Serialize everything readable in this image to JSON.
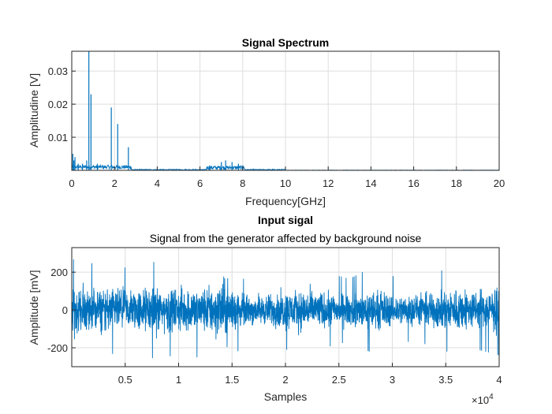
{
  "chart_data": [
    {
      "type": "line",
      "title": "Signal Spectrum",
      "subtitle": "",
      "xlabel": "Frequency[GHz]",
      "ylabel": "Amplitudine [V]",
      "xlim": [
        0,
        20
      ],
      "ylim": [
        0,
        0.036
      ],
      "xticks": [
        0,
        2,
        4,
        6,
        8,
        10,
        12,
        14,
        16,
        18,
        20
      ],
      "xtick_labels": [
        "0",
        "2",
        "4",
        "6",
        "8",
        "10",
        "12",
        "14",
        "16",
        "18",
        "20"
      ],
      "yticks": [
        0.01,
        0.02,
        0.03
      ],
      "ytick_labels": [
        "0.01",
        "0.02",
        "0.03"
      ],
      "grid": true,
      "color": "#0072BD",
      "series": [
        {
          "x": [
            0.05,
            0.1,
            0.15,
            0.3,
            0.5,
            0.7,
            0.8,
            0.9,
            1.2,
            1.85,
            2.15,
            2.65,
            6.45,
            7.0,
            7.2,
            7.5,
            7.8,
            8.0
          ],
          "y": [
            0.005,
            0.003,
            0.004,
            0.002,
            0.002,
            0.003,
            0.036,
            0.023,
            0.002,
            0.019,
            0.014,
            0.007,
            0.0015,
            0.0025,
            0.003,
            0.0025,
            0.002,
            0.0015
          ]
        }
      ]
    },
    {
      "type": "line",
      "title": "Input sigal",
      "subtitle": "Signal from the generator affected by background noise",
      "xlabel": "Samples",
      "ylabel": "Amplitude [mV]",
      "xlim": [
        0,
        40000
      ],
      "ylim": [
        -300,
        330
      ],
      "xticks": [
        5000,
        10000,
        15000,
        20000,
        25000,
        30000,
        35000,
        40000
      ],
      "xtick_labels": [
        "0.5",
        "1",
        "1.5",
        "2",
        "2.5",
        "3",
        "3.5",
        "4"
      ],
      "x_multiplier": "×10",
      "x_exponent": "4",
      "yticks": [
        -200,
        0,
        200
      ],
      "ytick_labels": [
        "-200",
        "0",
        "200"
      ],
      "grid": true,
      "color": "#0072BD",
      "envelope_x": [
        0,
        2500,
        5000,
        7500,
        10000,
        12500,
        14500,
        16000,
        18000,
        20000,
        22000,
        24000,
        26000,
        28000,
        30000,
        32000,
        34000,
        36000,
        38000,
        40000
      ],
      "envelope_amplitude": [
        180,
        160,
        150,
        170,
        160,
        170,
        230,
        110,
        110,
        140,
        150,
        130,
        110,
        150,
        120,
        110,
        130,
        160,
        140,
        160
      ]
    }
  ]
}
